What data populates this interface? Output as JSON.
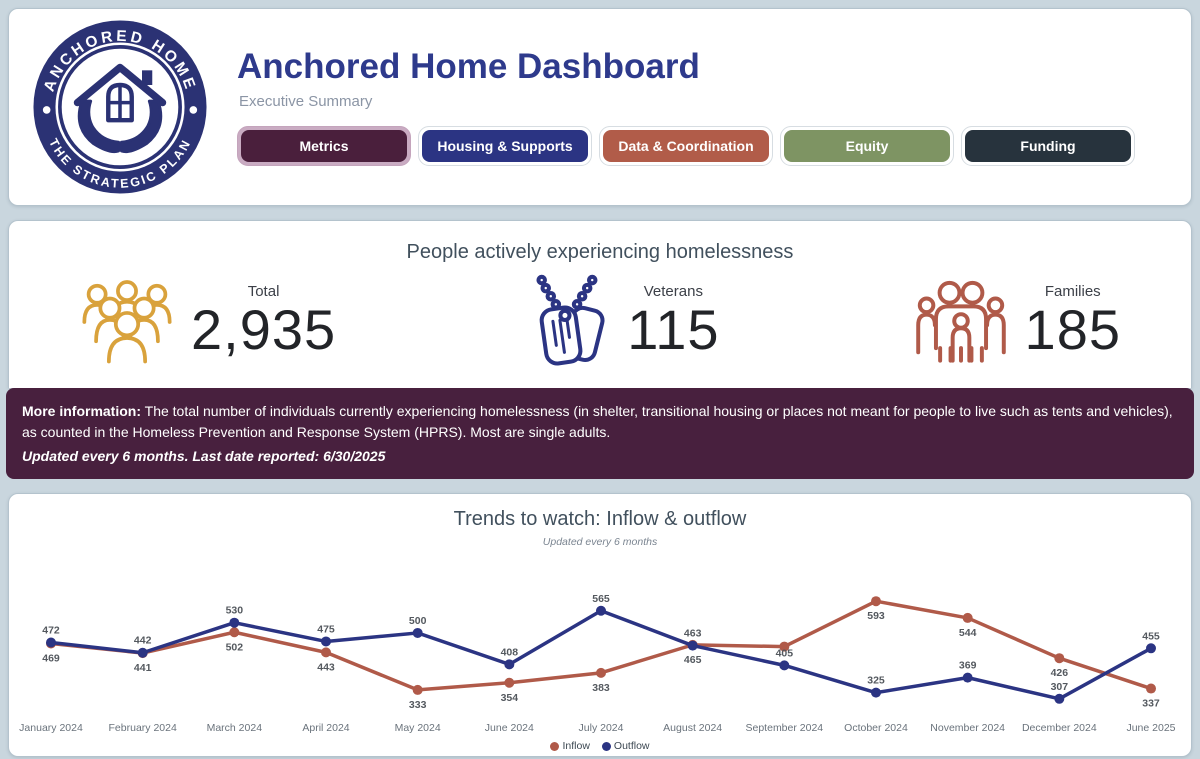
{
  "header": {
    "title": "Anchored Home Dashboard",
    "subtitle": "Executive Summary",
    "logo": {
      "top_text": "ANCHORED HOME",
      "bottom_text": "THE STRATEGIC PLAN",
      "color": "#2b3274"
    }
  },
  "nav": {
    "active_ring_color": "#c9abc2",
    "buttons": [
      {
        "label": "Metrics",
        "color": "#4a1f3c",
        "active": true
      },
      {
        "label": "Housing & Supports",
        "color": "#2b3483",
        "active": false
      },
      {
        "label": "Data & Coordination",
        "color": "#b15c49",
        "active": false
      },
      {
        "label": "Equity",
        "color": "#7e9463",
        "active": false
      },
      {
        "label": "Funding",
        "color": "#27333d",
        "active": false
      }
    ]
  },
  "metrics_card": {
    "title": "People actively experiencing homelessness",
    "metrics": [
      {
        "label": "Total",
        "value": "2,935",
        "icon": "people-group-icon",
        "color": "#d9a23c"
      },
      {
        "label": "Veterans",
        "value": "115",
        "icon": "dog-tags-icon",
        "color": "#2b3483"
      },
      {
        "label": "Families",
        "value": "185",
        "icon": "family-icon",
        "color": "#b05a49"
      }
    ],
    "info_banner": {
      "bg_color": "#48203e",
      "lead": "More information:",
      "body": " The total number of individuals currently experiencing homelessness (in shelter, transitional housing or places not meant for people to live such as tents and vehicles), as counted in the Homeless Prevention and Response System (HPRS). Most are single adults.",
      "footnote": "Updated every 6 months. Last date reported: 6/30/2025"
    }
  },
  "chart_card": {
    "title": "Trends to watch: Inflow & outflow",
    "subtitle": "Updated every 6 months"
  },
  "chart_data": {
    "type": "line",
    "title": "Trends to watch: Inflow & outflow",
    "subtitle": "Updated every 6 months",
    "categories": [
      "January 2024",
      "February 2024",
      "March 2024",
      "April 2024",
      "May 2024",
      "June 2024",
      "July 2024",
      "August 2024",
      "September 2024",
      "October 2024",
      "November 2024",
      "December 2024",
      "June 2025"
    ],
    "series": [
      {
        "name": "Inflow",
        "color": "#b05a49",
        "label_position": "below",
        "values": [
          469,
          441,
          502,
          443,
          333,
          354,
          383,
          465,
          460,
          593,
          544,
          426,
          337
        ],
        "labels": [
          "469",
          "441",
          "502",
          "443",
          "333",
          "354",
          "383",
          "465",
          "",
          "593",
          "544",
          "426",
          "337"
        ]
      },
      {
        "name": "Outflow",
        "color": "#2b3483",
        "label_position": "above",
        "values": [
          472,
          442,
          530,
          475,
          500,
          408,
          565,
          463,
          405,
          325,
          369,
          307,
          455
        ],
        "labels": [
          "472",
          "442",
          "530",
          "475",
          "500",
          "408",
          "565",
          "463",
          "405",
          "325",
          "369",
          "307",
          "455"
        ]
      }
    ],
    "ylim": [
      280,
      620
    ],
    "grid": false,
    "legend_position": "bottom"
  }
}
